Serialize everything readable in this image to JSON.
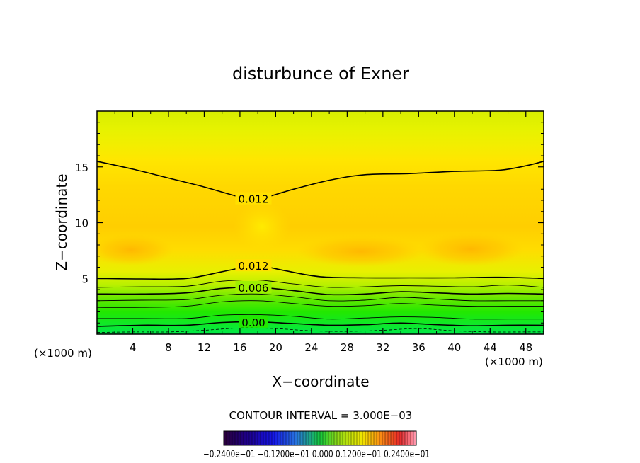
{
  "chart_data": {
    "type": "heatmap",
    "title": "disturbunce of Exner",
    "xlabel": "X−coordinate",
    "ylabel": "Z−coordinate",
    "x_unit": "(×1000 m)",
    "y_unit": "(×1000 m)",
    "xlim": [
      0,
      50
    ],
    "ylim": [
      0,
      20
    ],
    "x_ticks": [
      4,
      8,
      12,
      16,
      20,
      24,
      28,
      32,
      36,
      40,
      44,
      48
    ],
    "y_ticks": [
      5,
      10,
      15
    ],
    "grid": false,
    "contour_interval_text": "CONTOUR INTERVAL = 3.000E−03",
    "colorbar_labels_text": "−0.2400e−01 −0.1200e−01 0.000 0.1200e−01 0.2400e−01",
    "contour_lines": [
      {
        "level": 0.0,
        "label": "0.00",
        "dashed": false,
        "x": [
          0,
          5,
          10,
          14,
          18,
          22,
          26,
          30,
          34,
          38,
          42,
          46,
          50
        ],
        "z": [
          0.7,
          0.8,
          0.8,
          1.05,
          1.1,
          0.95,
          0.8,
          0.85,
          1.0,
          0.85,
          0.75,
          0.8,
          0.8
        ]
      },
      {
        "level": 0.0015,
        "label": "",
        "dashed": false,
        "x": [
          0,
          5,
          10,
          14,
          18,
          22,
          26,
          30,
          34,
          38,
          42,
          46,
          50
        ],
        "z": [
          1.4,
          1.4,
          1.4,
          1.7,
          1.75,
          1.6,
          1.35,
          1.45,
          1.55,
          1.5,
          1.35,
          1.35,
          1.35
        ]
      },
      {
        "level": 0.003,
        "label": "",
        "dashed": false,
        "x": [
          0,
          5,
          10,
          14,
          18,
          22,
          26,
          30,
          34,
          38,
          42,
          46,
          50
        ],
        "z": [
          2.4,
          2.4,
          2.5,
          2.9,
          3.0,
          2.75,
          2.5,
          2.55,
          2.75,
          2.6,
          2.5,
          2.5,
          2.5
        ]
      },
      {
        "level": 0.0045,
        "label": "",
        "dashed": false,
        "x": [
          0,
          5,
          10,
          14,
          18,
          22,
          26,
          30,
          34,
          38,
          42,
          46,
          50
        ],
        "z": [
          3.0,
          3.05,
          3.1,
          3.5,
          3.6,
          3.35,
          3.0,
          3.05,
          3.3,
          3.15,
          3.0,
          3.0,
          3.0
        ]
      },
      {
        "level": 0.006,
        "label": "0.006",
        "dashed": false,
        "x": [
          0,
          5,
          10,
          14,
          18,
          22,
          26,
          30,
          34,
          38,
          42,
          46,
          50
        ],
        "z": [
          3.6,
          3.6,
          3.7,
          4.1,
          4.2,
          3.9,
          3.55,
          3.6,
          3.8,
          3.7,
          3.6,
          3.65,
          3.6
        ]
      },
      {
        "level": 0.009,
        "label": "",
        "dashed": false,
        "x": [
          0,
          5,
          10,
          14,
          18,
          22,
          26,
          30,
          34,
          38,
          42,
          46,
          50
        ],
        "z": [
          4.2,
          4.25,
          4.3,
          4.75,
          4.85,
          4.5,
          4.2,
          4.25,
          4.35,
          4.3,
          4.25,
          4.4,
          4.2
        ]
      },
      {
        "level": 0.012,
        "label": "0.012",
        "dashed": false,
        "x": [
          0,
          5,
          10,
          14,
          17,
          18,
          21,
          25,
          30,
          35,
          40,
          45,
          50
        ],
        "z": [
          5.0,
          4.95,
          5.0,
          5.6,
          6.1,
          6.2,
          5.7,
          5.15,
          5.05,
          5.05,
          5.05,
          5.1,
          5.0
        ]
      },
      {
        "level": 0.012,
        "label": "0.012",
        "dashed": false,
        "x": [
          0,
          4,
          8,
          12,
          16,
          18,
          22,
          26,
          30,
          35,
          40,
          45,
          48,
          50
        ],
        "z": [
          15.5,
          14.8,
          14.0,
          13.2,
          12.3,
          12.1,
          13.0,
          13.8,
          14.3,
          14.4,
          14.6,
          14.7,
          15.1,
          15.5
        ]
      }
    ],
    "dashed_line": {
      "level": -0.0015,
      "x": [
        0,
        4,
        8,
        12,
        16,
        20,
        24,
        28,
        32,
        36,
        40,
        44,
        48,
        50
      ],
      "z": [
        0.15,
        0.2,
        0.2,
        0.35,
        0.55,
        0.5,
        0.3,
        0.25,
        0.35,
        0.5,
        0.3,
        0.2,
        0.2,
        0.2
      ]
    }
  }
}
